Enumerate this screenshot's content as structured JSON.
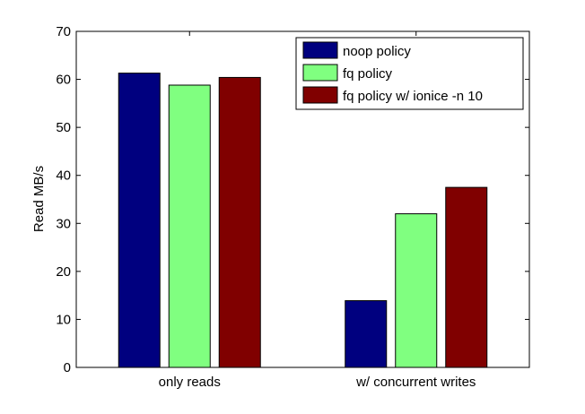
{
  "chart_data": {
    "type": "bar",
    "categories": [
      "only reads",
      "w/ concurrent writes"
    ],
    "series": [
      {
        "name": "noop policy",
        "values": [
          61.3,
          13.9
        ],
        "color": "#00007f"
      },
      {
        "name": "fq policy",
        "values": [
          58.8,
          32.0
        ],
        "color": "#80ff80"
      },
      {
        "name": "fq policy w/ ionice -n 10",
        "values": [
          60.4,
          37.5
        ],
        "color": "#800000"
      }
    ],
    "xlabel": "",
    "ylabel": "Read MB/s",
    "ylim": [
      0,
      70
    ],
    "yticks": [
      0,
      10,
      20,
      30,
      40,
      50,
      60,
      70
    ],
    "grid": false,
    "legend_position": "top-right"
  }
}
